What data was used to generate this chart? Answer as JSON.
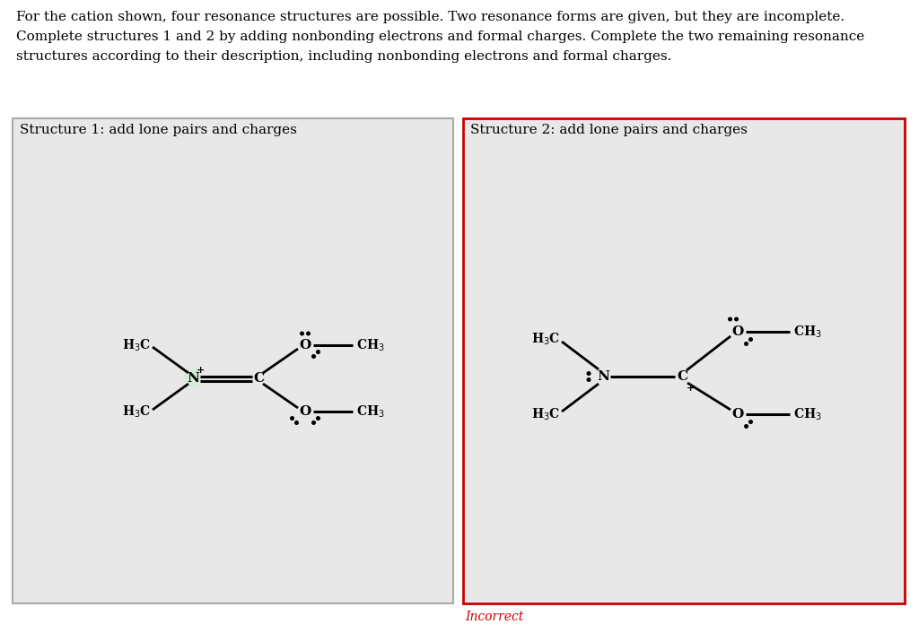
{
  "header_line1": "For the cation shown, four resonance structures are possible. Two resonance forms are given, but they are incomplete.",
  "header_line2": "Complete structures 1 and 2 by adding nonbonding electrons and formal charges. Complete the two remaining resonance",
  "header_line3": "structures according to their description, including nonbonding electrons and formal charges.",
  "box1_title": "Structure 1: add lone pairs and charges",
  "box2_title": "Structure 2: add lone pairs and charges",
  "incorrect_text": "Incorrect",
  "box_bg": "#e8e8e8",
  "box1_border": "#aaaaaa",
  "box2_border": "#cc0000",
  "incorrect_color": "#cc0000",
  "page_bg": "#ffffff",
  "n_circle_color": "#d4edda",
  "text_color": "#000000"
}
